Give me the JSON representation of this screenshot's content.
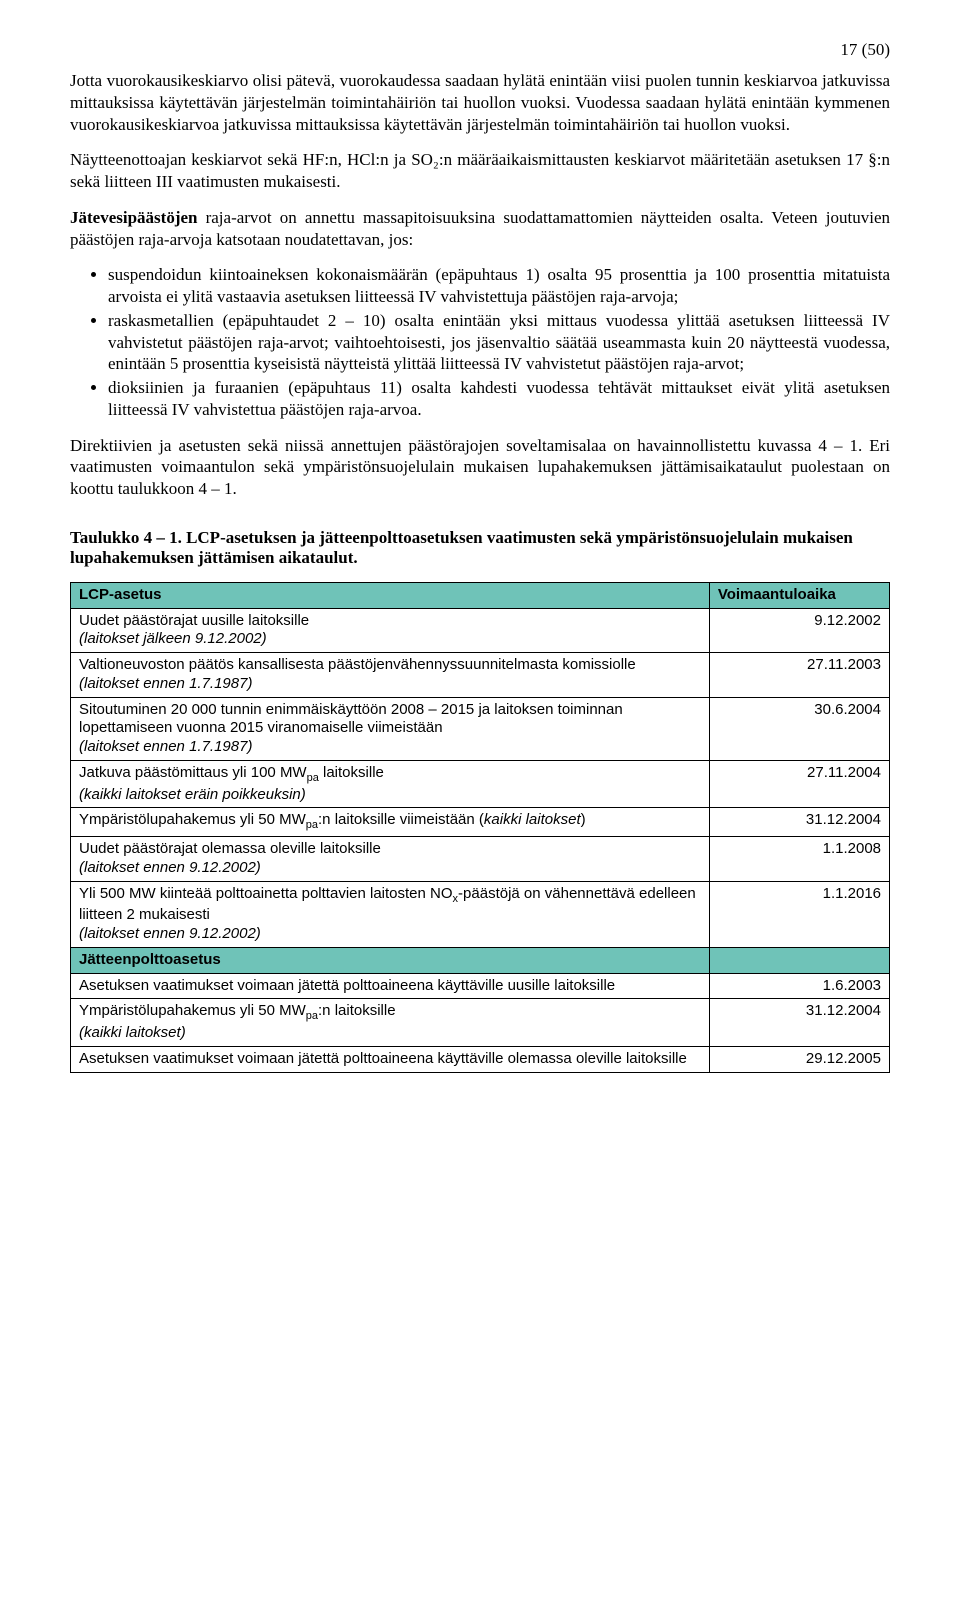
{
  "page_number": "17 (50)",
  "para1": "Jotta vuorokausikeskiarvo olisi pätevä, vuorokaudessa saadaan hylätä enintään viisi puolen tunnin keskiarvoa jatkuvissa mittauksissa käytettävän järjestelmän toiminta­häiriön tai huollon vuoksi. Vuodessa saadaan hylätä enintään kymmenen vuorokausi­keskiarvoa jatkuvissa mittauksissa käytettävän järjestelmän toimintahäiriön tai huollon vuoksi.",
  "para2": "Näytteenottoajan keskiarvot sekä HF:n, HCl:n ja SO₂:n määräaikaismittausten keski­arvot määritetään asetuksen 17 §:n sekä liitteen III vaatimusten mukaisesti.",
  "para3_lead_bold": "Jätevesipäästöjen",
  "para3_lead_rest": " raja-arvot on annettu massapitoisuuksina suodattamattomien näyttei­den osalta. Veteen joutuvien päästöjen raja-arvoja katsotaan noudatettavan, jos:",
  "bullets": [
    "suspendoidun kiintoaineksen kokonaismäärän (epäpuhtaus 1) osalta 95 prosent­tia ja 100 prosenttia mitatuista arvoista ei ylitä vastaavia asetuksen liitteessä IV vahvistettuja päästöjen raja-arvoja;",
    "raskasmetallien (epäpuhtaudet 2 – 10) osalta enintään yksi mittaus vuodessa ylit­tää asetuksen liitteessä IV vahvistetut päästöjen raja-arvot; vaihtoehtoisesti, jos jäsenvaltio säätää useammasta kuin 20 näytteestä vuodessa, enintään 5 prosenttia kyseisistä näytteistä ylittää liitteessä IV vahvistetut päästöjen raja-arvot;",
    "dioksiinien ja furaanien (epäpuhtaus 11) osalta kahdesti vuodessa tehtävät mitta­ukset eivät ylitä asetuksen liitteessä IV vahvistettua päästöjen raja-arvoa."
  ],
  "para4": "Direktiivien ja asetusten sekä niissä annettujen päästörajojen soveltamisalaa on havain­nollistettu kuvassa 4 – 1. Eri vaatimusten voimaantulon sekä ympäristönsuojelulain mu­kaisen lupahakemuksen jättämisaikataulut puolestaan on koottu taulukkoon 4 – 1.",
  "table_title": "Taulukko 4 – 1. LCP-asetuksen ja jätteenpolttoasetuksen vaatimusten sekä ympä­ristönsuojelulain mukaisen lupahakemuksen jättämisen aikataulut.",
  "table": {
    "header_bg": "#6fc3b8",
    "col_widths": [
      "78%",
      "22%"
    ],
    "sections": [
      {
        "header": [
          "LCP-asetus",
          "Voimaantuloaika"
        ],
        "rows": [
          {
            "left_plain": "Uudet päästörajat uusille laitoksille",
            "left_italic": "(laitokset jälkeen 9.12.2002)",
            "right": "9.12.2002"
          },
          {
            "left_plain": "Valtioneuvoston päätös kansallisesta päästöjenvähennyssuunnitelmasta komissiolle",
            "left_italic": "(laitokset ennen 1.7.1987)",
            "right": "27.11.2003"
          },
          {
            "left_plain": "Sitoutuminen 20 000 tunnin enimmäiskäyttöön 2008 – 2015 ja laitoksen toiminnan lopettamiseen vuonna 2015 viranomaiselle viimeistään",
            "left_italic": "(laitokset ennen 1.7.1987)",
            "right": "30.6.2004"
          },
          {
            "left_html": "Jatkuva päästömittaus yli 100 MW<sub>pa</sub> laitoksille",
            "left_italic": "(kaikki laitokset eräin poikkeuksin)",
            "right": "27.11.2004"
          },
          {
            "left_html": "Ympäristölupahakemus yli 50 MW<sub>pa</sub>:n laitoksille viimeistään (<span class=\"it\">kaikki laitokset</span>)",
            "right": "31.12.2004"
          },
          {
            "left_plain": "Uudet päästörajat olemassa oleville laitoksille",
            "left_italic": "(laitokset ennen 9.12.2002)",
            "right": "1.1.2008"
          },
          {
            "left_html": "Yli 500 MW kiinteää polttoainetta polttavien laitosten NO<sub>x</sub>-päästöjä on vähennettävä edelleen liitteen 2 mukaisesti",
            "left_italic": "(laitokset ennen 9.12.2002)",
            "right": "1.1.2016"
          }
        ]
      },
      {
        "header": [
          "Jätteenpolttoasetus",
          ""
        ],
        "rows": [
          {
            "left_plain": "Asetuksen vaatimukset voimaan jätettä polttoaineena käyttäville uusille laitoksille",
            "right": "1.6.2003"
          },
          {
            "left_html": "Ympäristölupahakemus yli 50 MW<sub>pa</sub>:n laitoksille",
            "left_italic": "(kaikki laitokset)",
            "right": "31.12.2004"
          },
          {
            "left_plain": "Asetuksen vaatimukset voimaan jätettä polttoaineena käyttäville olemassa oleville laitoksille",
            "right": "29.12.2005"
          }
        ]
      }
    ]
  }
}
